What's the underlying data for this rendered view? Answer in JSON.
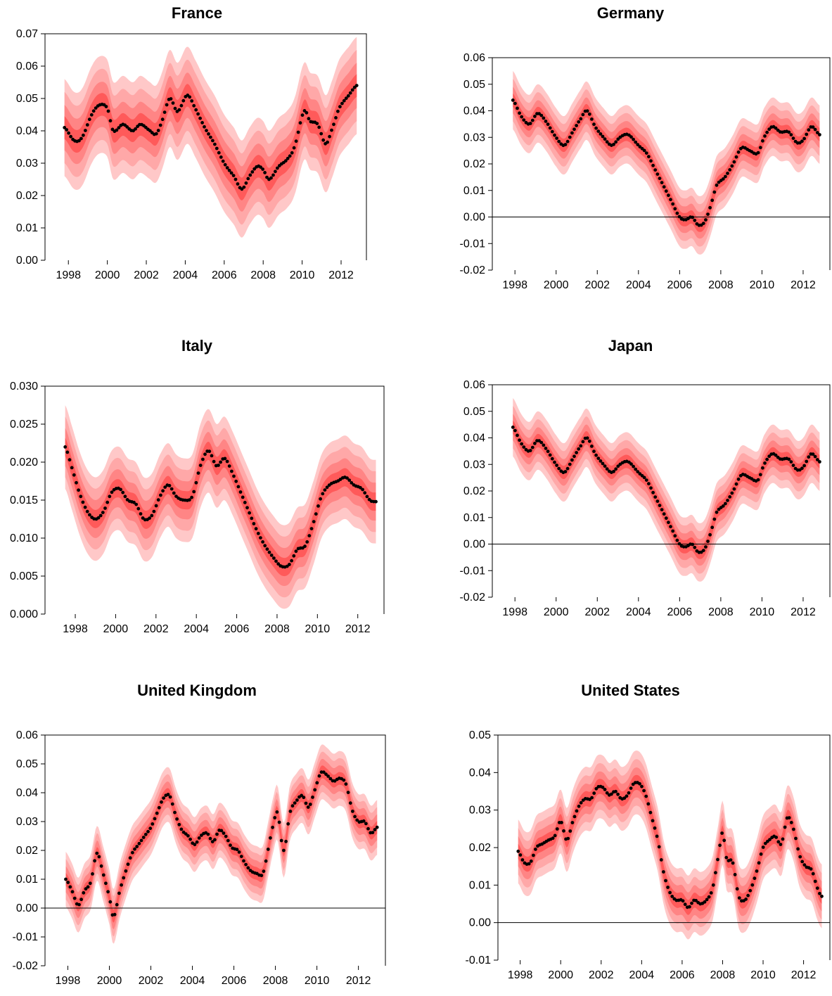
{
  "colors": {
    "band_outer": "#ffc8c8",
    "band_2": "#ffa8a8",
    "band_3": "#ff8585",
    "band_inner": "#ff5a5a",
    "point": "#000000",
    "axis": "#000000"
  },
  "chart_data": [
    {
      "type": "line",
      "title": "France",
      "ylim": [
        0,
        0.07
      ],
      "yticks": [
        0,
        0.01,
        0.02,
        0.03,
        0.04,
        0.05,
        0.06,
        0.07
      ],
      "ytick_labels": [
        "0.00",
        "0.01",
        "0.02",
        "0.03",
        "0.04",
        "0.05",
        "0.06",
        "0.07"
      ],
      "xlim": [
        1996.8,
        2013.3
      ],
      "xticks": [
        1998,
        2000,
        2002,
        2004,
        2006,
        2008,
        2010,
        2012
      ],
      "xtick_labels": [
        "1998",
        "2000",
        "2002",
        "2004",
        "2006",
        "2008",
        "2010",
        "2012"
      ],
      "zero_line": false,
      "band_halfwidth": [
        0.015,
        0.011,
        0.007,
        0.0035
      ],
      "x": [
        1997.8,
        1998.3,
        1998.7,
        1999.2,
        1999.6,
        2000.0,
        2000.3,
        2000.8,
        2001.3,
        2001.7,
        2002.2,
        2002.5,
        2002.8,
        2003.2,
        2003.6,
        2004.1,
        2004.5,
        2005.0,
        2005.5,
        2006.0,
        2006.5,
        2006.9,
        2007.3,
        2007.7,
        2008.0,
        2008.3,
        2008.8,
        2009.2,
        2009.6,
        2010.1,
        2010.4,
        2010.8,
        2011.2,
        2011.5,
        2011.9,
        2012.4,
        2012.8
      ],
      "y": [
        0.041,
        0.037,
        0.038,
        0.045,
        0.048,
        0.047,
        0.04,
        0.042,
        0.04,
        0.042,
        0.04,
        0.039,
        0.043,
        0.05,
        0.046,
        0.051,
        0.047,
        0.041,
        0.036,
        0.03,
        0.026,
        0.022,
        0.026,
        0.029,
        0.028,
        0.025,
        0.029,
        0.031,
        0.035,
        0.046,
        0.043,
        0.042,
        0.036,
        0.04,
        0.047,
        0.051,
        0.054
      ]
    },
    {
      "type": "line",
      "title": "Germany",
      "ylim": [
        -0.02,
        0.06
      ],
      "yticks": [
        -0.02,
        -0.01,
        0,
        0.01,
        0.02,
        0.03,
        0.04,
        0.05,
        0.06
      ],
      "ytick_labels": [
        "-0.02",
        "-0.01",
        "0.00",
        "0.01",
        "0.02",
        "0.03",
        "0.04",
        "0.05",
        "0.06"
      ],
      "xlim": [
        1996.9,
        2013.3
      ],
      "xticks": [
        1998,
        2000,
        2002,
        2004,
        2006,
        2008,
        2010,
        2012
      ],
      "xtick_labels": [
        "1998",
        "2000",
        "2002",
        "2004",
        "2006",
        "2008",
        "2010",
        "2012"
      ],
      "zero_line": true,
      "band_halfwidth": [
        0.011,
        0.008,
        0.005,
        0.0025
      ],
      "x": [
        1997.9,
        1998.3,
        1998.7,
        1999.1,
        1999.5,
        2000.0,
        2000.4,
        2000.8,
        2001.2,
        2001.5,
        2001.9,
        2002.3,
        2002.7,
        2003.1,
        2003.5,
        2004.0,
        2004.4,
        2004.8,
        2005.2,
        2005.6,
        2006.0,
        2006.3,
        2006.6,
        2006.9,
        2007.2,
        2007.5,
        2007.8,
        2008.2,
        2008.6,
        2009.0,
        2009.4,
        2009.8,
        2010.1,
        2010.5,
        2010.9,
        2011.3,
        2011.7,
        2012.0,
        2012.4,
        2012.8
      ],
      "y": [
        0.044,
        0.038,
        0.035,
        0.039,
        0.036,
        0.03,
        0.027,
        0.032,
        0.037,
        0.04,
        0.034,
        0.03,
        0.027,
        0.03,
        0.031,
        0.027,
        0.024,
        0.018,
        0.012,
        0.006,
        0.0,
        -0.001,
        0.0,
        -0.003,
        -0.002,
        0.004,
        0.012,
        0.015,
        0.02,
        0.026,
        0.025,
        0.024,
        0.03,
        0.034,
        0.032,
        0.032,
        0.028,
        0.029,
        0.034,
        0.031
      ]
    },
    {
      "type": "line",
      "title": "Italy",
      "ylim": [
        0,
        0.03
      ],
      "yticks": [
        0,
        0.005,
        0.01,
        0.015,
        0.02,
        0.025,
        0.03
      ],
      "ytick_labels": [
        "0.000",
        "0.005",
        "0.010",
        "0.015",
        "0.020",
        "0.025",
        "0.030"
      ],
      "xlim": [
        1996.5,
        2013.3
      ],
      "xticks": [
        1998,
        2000,
        2002,
        2004,
        2006,
        2008,
        2010,
        2012
      ],
      "xtick_labels": [
        "1998",
        "2000",
        "2002",
        "2004",
        "2006",
        "2008",
        "2010",
        "2012"
      ],
      "zero_line": false,
      "band_halfwidth": [
        0.0055,
        0.004,
        0.0025,
        0.0012
      ],
      "x": [
        1997.5,
        1997.8,
        1998.2,
        1998.6,
        1999.0,
        1999.4,
        1999.8,
        2000.2,
        2000.6,
        2001.0,
        2001.4,
        2001.8,
        2002.2,
        2002.6,
        2003.0,
        2003.4,
        2003.8,
        2004.2,
        2004.6,
        2005.0,
        2005.4,
        2005.8,
        2006.2,
        2006.6,
        2007.0,
        2007.4,
        2007.8,
        2008.2,
        2008.6,
        2009.0,
        2009.4,
        2009.8,
        2010.2,
        2010.6,
        2011.0,
        2011.4,
        2011.8,
        2012.2,
        2012.6,
        2012.9
      ],
      "y": [
        0.022,
        0.0195,
        0.016,
        0.0135,
        0.0125,
        0.0135,
        0.016,
        0.0165,
        0.015,
        0.0145,
        0.0125,
        0.013,
        0.0155,
        0.017,
        0.0155,
        0.015,
        0.0155,
        0.0195,
        0.0215,
        0.0195,
        0.0205,
        0.0185,
        0.016,
        0.0135,
        0.011,
        0.009,
        0.0075,
        0.0063,
        0.0065,
        0.0085,
        0.009,
        0.012,
        0.0155,
        0.017,
        0.0175,
        0.018,
        0.017,
        0.0165,
        0.015,
        0.0148
      ]
    },
    {
      "type": "line",
      "title": "Japan",
      "ylim": [
        -0.02,
        0.06
      ],
      "yticks": [
        -0.02,
        -0.01,
        0,
        0.01,
        0.02,
        0.03,
        0.04,
        0.05,
        0.06
      ],
      "ytick_labels": [
        "-0.02",
        "-0.01",
        "0.00",
        "0.01",
        "0.02",
        "0.03",
        "0.04",
        "0.05",
        "0.06"
      ],
      "xlim": [
        1996.9,
        2013.3
      ],
      "xticks": [
        1998,
        2000,
        2002,
        2004,
        2006,
        2008,
        2010,
        2012
      ],
      "xtick_labels": [
        "1998",
        "2000",
        "2002",
        "2004",
        "2006",
        "2008",
        "2010",
        "2012"
      ],
      "zero_line": true,
      "band_halfwidth": [
        0.011,
        0.008,
        0.005,
        0.0025
      ],
      "x": [
        1997.9,
        1998.3,
        1998.7,
        1999.1,
        1999.5,
        2000.0,
        2000.4,
        2000.8,
        2001.2,
        2001.5,
        2001.9,
        2002.3,
        2002.7,
        2003.1,
        2003.5,
        2004.0,
        2004.4,
        2004.8,
        2005.2,
        2005.6,
        2006.0,
        2006.3,
        2006.6,
        2006.9,
        2007.2,
        2007.5,
        2007.8,
        2008.2,
        2008.6,
        2009.0,
        2009.4,
        2009.8,
        2010.1,
        2010.5,
        2010.9,
        2011.3,
        2011.7,
        2012.0,
        2012.4,
        2012.8
      ],
      "y": [
        0.044,
        0.038,
        0.035,
        0.039,
        0.036,
        0.03,
        0.027,
        0.032,
        0.037,
        0.04,
        0.034,
        0.03,
        0.027,
        0.03,
        0.031,
        0.027,
        0.024,
        0.018,
        0.012,
        0.006,
        0.0,
        -0.001,
        0.0,
        -0.003,
        -0.002,
        0.004,
        0.012,
        0.015,
        0.02,
        0.026,
        0.025,
        0.024,
        0.03,
        0.034,
        0.032,
        0.032,
        0.028,
        0.029,
        0.034,
        0.031
      ]
    },
    {
      "type": "line",
      "title": "United Kingdom",
      "ylim": [
        -0.02,
        0.06
      ],
      "yticks": [
        -0.02,
        -0.01,
        0,
        0.01,
        0.02,
        0.03,
        0.04,
        0.05,
        0.06
      ],
      "ytick_labels": [
        "-0.02",
        "-0.01",
        "0.00",
        "0.01",
        "0.02",
        "0.03",
        "0.04",
        "0.05",
        "0.06"
      ],
      "xlim": [
        1996.9,
        2013.3
      ],
      "xticks": [
        1998,
        2000,
        2002,
        2004,
        2006,
        2008,
        2010,
        2012
      ],
      "xtick_labels": [
        "1998",
        "2000",
        "2002",
        "2004",
        "2006",
        "2008",
        "2010",
        "2012"
      ],
      "zero_line": true,
      "band_halfwidth": [
        0.0095,
        0.007,
        0.0045,
        0.0022
      ],
      "x": [
        1997.9,
        1998.2,
        1998.5,
        1998.8,
        1999.1,
        1999.4,
        1999.7,
        2000.0,
        2000.2,
        2000.5,
        2000.8,
        2001.1,
        2001.4,
        2001.7,
        2002.0,
        2002.3,
        2002.6,
        2002.9,
        2003.2,
        2003.5,
        2003.8,
        2004.1,
        2004.4,
        2004.7,
        2005.0,
        2005.3,
        2005.6,
        2005.9,
        2006.2,
        2006.5,
        2006.8,
        2007.1,
        2007.4,
        2007.7,
        2007.9,
        2008.1,
        2008.4,
        2008.7,
        2009.0,
        2009.3,
        2009.6,
        2009.9,
        2010.2,
        2010.5,
        2010.8,
        2011.1,
        2011.4,
        2011.7,
        2012.0,
        2012.3,
        2012.6,
        2012.9
      ],
      "y": [
        0.01,
        0.006,
        0.001,
        0.006,
        0.009,
        0.019,
        0.012,
        0.004,
        -0.003,
        0.006,
        0.013,
        0.019,
        0.022,
        0.025,
        0.028,
        0.033,
        0.038,
        0.039,
        0.032,
        0.027,
        0.025,
        0.022,
        0.025,
        0.026,
        0.023,
        0.027,
        0.025,
        0.021,
        0.02,
        0.016,
        0.013,
        0.012,
        0.012,
        0.022,
        0.029,
        0.033,
        0.02,
        0.033,
        0.037,
        0.039,
        0.035,
        0.041,
        0.047,
        0.046,
        0.044,
        0.045,
        0.043,
        0.034,
        0.03,
        0.03,
        0.026,
        0.028
      ]
    },
    {
      "type": "line",
      "title": "United States",
      "ylim": [
        -0.01,
        0.05
      ],
      "yticks": [
        -0.01,
        0,
        0.01,
        0.02,
        0.03,
        0.04,
        0.05
      ],
      "ytick_labels": [
        "-0.01",
        "0.00",
        "0.01",
        "0.02",
        "0.03",
        "0.04",
        "0.05"
      ],
      "xlim": [
        1996.9,
        2013.3
      ],
      "xticks": [
        1998,
        2000,
        2002,
        2004,
        2006,
        2008,
        2010,
        2012
      ],
      "xtick_labels": [
        "1998",
        "2000",
        "2002",
        "2004",
        "2006",
        "2008",
        "2010",
        "2012"
      ],
      "zero_line": true,
      "band_halfwidth": [
        0.0085,
        0.0062,
        0.004,
        0.002
      ],
      "x": [
        1997.9,
        1998.2,
        1998.5,
        1998.8,
        1999.1,
        1999.4,
        1999.7,
        2000.0,
        2000.3,
        2000.6,
        2000.9,
        2001.2,
        2001.5,
        2001.8,
        2002.1,
        2002.4,
        2002.7,
        2003.0,
        2003.3,
        2003.6,
        2003.9,
        2004.2,
        2004.5,
        2004.8,
        2005.1,
        2005.4,
        2005.7,
        2006.0,
        2006.3,
        2006.6,
        2006.9,
        2007.2,
        2007.5,
        2007.8,
        2008.0,
        2008.2,
        2008.5,
        2008.8,
        2009.1,
        2009.4,
        2009.7,
        2010.0,
        2010.3,
        2010.6,
        2010.9,
        2011.2,
        2011.5,
        2011.8,
        2012.1,
        2012.4,
        2012.7,
        2012.9
      ],
      "y": [
        0.019,
        0.016,
        0.016,
        0.02,
        0.021,
        0.022,
        0.023,
        0.027,
        0.022,
        0.027,
        0.031,
        0.033,
        0.033,
        0.036,
        0.036,
        0.034,
        0.035,
        0.033,
        0.034,
        0.037,
        0.037,
        0.034,
        0.028,
        0.022,
        0.013,
        0.008,
        0.006,
        0.006,
        0.004,
        0.006,
        0.005,
        0.006,
        0.009,
        0.018,
        0.024,
        0.017,
        0.016,
        0.007,
        0.006,
        0.009,
        0.014,
        0.02,
        0.022,
        0.023,
        0.021,
        0.028,
        0.025,
        0.018,
        0.015,
        0.014,
        0.009,
        0.007
      ]
    }
  ]
}
